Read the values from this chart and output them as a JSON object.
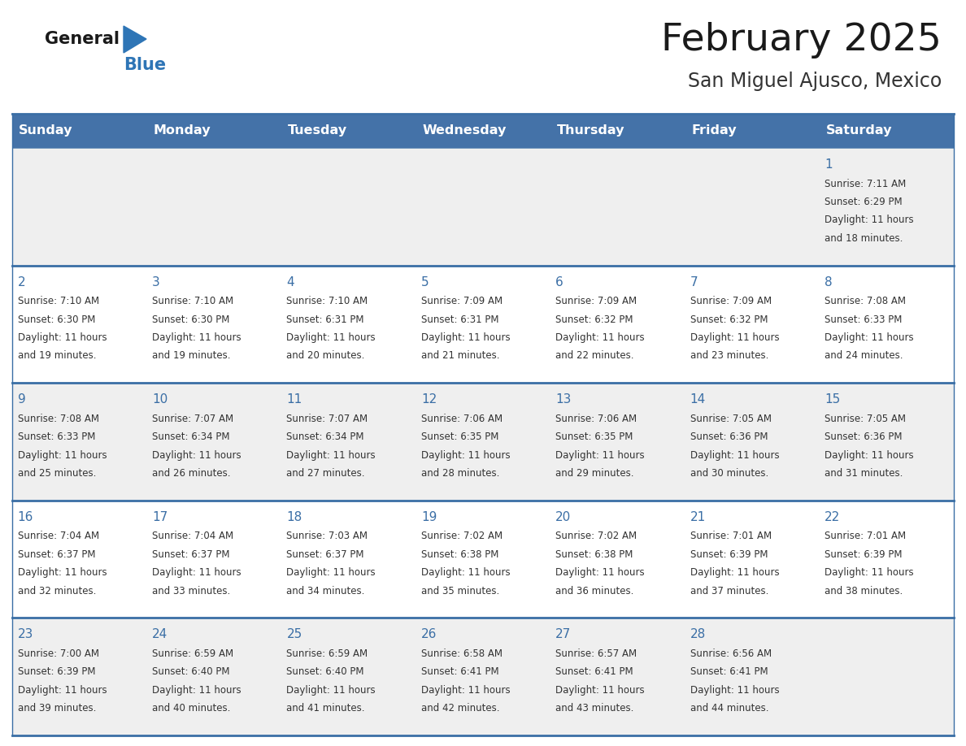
{
  "title": "February 2025",
  "subtitle": "San Miguel Ajusco, Mexico",
  "days_of_week": [
    "Sunday",
    "Monday",
    "Tuesday",
    "Wednesday",
    "Thursday",
    "Friday",
    "Saturday"
  ],
  "header_bg": "#4472a8",
  "header_text": "#ffffff",
  "row_bg_odd": "#efefef",
  "row_bg_even": "#ffffff",
  "day_number_color": "#3a6ea5",
  "info_text_color": "#333333",
  "border_color": "#3a6ea5",
  "bg_color": "#ffffff",
  "logo_triangle_color": "#2e75b6",
  "calendar_data": [
    [
      null,
      null,
      null,
      null,
      null,
      null,
      {
        "day": "1",
        "sunrise": "7:11 AM",
        "sunset": "6:29 PM",
        "daylight": "11 hours",
        "daylight2": "and 18 minutes."
      }
    ],
    [
      {
        "day": "2",
        "sunrise": "7:10 AM",
        "sunset": "6:30 PM",
        "daylight": "11 hours",
        "daylight2": "and 19 minutes."
      },
      {
        "day": "3",
        "sunrise": "7:10 AM",
        "sunset": "6:30 PM",
        "daylight": "11 hours",
        "daylight2": "and 19 minutes."
      },
      {
        "day": "4",
        "sunrise": "7:10 AM",
        "sunset": "6:31 PM",
        "daylight": "11 hours",
        "daylight2": "and 20 minutes."
      },
      {
        "day": "5",
        "sunrise": "7:09 AM",
        "sunset": "6:31 PM",
        "daylight": "11 hours",
        "daylight2": "and 21 minutes."
      },
      {
        "day": "6",
        "sunrise": "7:09 AM",
        "sunset": "6:32 PM",
        "daylight": "11 hours",
        "daylight2": "and 22 minutes."
      },
      {
        "day": "7",
        "sunrise": "7:09 AM",
        "sunset": "6:32 PM",
        "daylight": "11 hours",
        "daylight2": "and 23 minutes."
      },
      {
        "day": "8",
        "sunrise": "7:08 AM",
        "sunset": "6:33 PM",
        "daylight": "11 hours",
        "daylight2": "and 24 minutes."
      }
    ],
    [
      {
        "day": "9",
        "sunrise": "7:08 AM",
        "sunset": "6:33 PM",
        "daylight": "11 hours",
        "daylight2": "and 25 minutes."
      },
      {
        "day": "10",
        "sunrise": "7:07 AM",
        "sunset": "6:34 PM",
        "daylight": "11 hours",
        "daylight2": "and 26 minutes."
      },
      {
        "day": "11",
        "sunrise": "7:07 AM",
        "sunset": "6:34 PM",
        "daylight": "11 hours",
        "daylight2": "and 27 minutes."
      },
      {
        "day": "12",
        "sunrise": "7:06 AM",
        "sunset": "6:35 PM",
        "daylight": "11 hours",
        "daylight2": "and 28 minutes."
      },
      {
        "day": "13",
        "sunrise": "7:06 AM",
        "sunset": "6:35 PM",
        "daylight": "11 hours",
        "daylight2": "and 29 minutes."
      },
      {
        "day": "14",
        "sunrise": "7:05 AM",
        "sunset": "6:36 PM",
        "daylight": "11 hours",
        "daylight2": "and 30 minutes."
      },
      {
        "day": "15",
        "sunrise": "7:05 AM",
        "sunset": "6:36 PM",
        "daylight": "11 hours",
        "daylight2": "and 31 minutes."
      }
    ],
    [
      {
        "day": "16",
        "sunrise": "7:04 AM",
        "sunset": "6:37 PM",
        "daylight": "11 hours",
        "daylight2": "and 32 minutes."
      },
      {
        "day": "17",
        "sunrise": "7:04 AM",
        "sunset": "6:37 PM",
        "daylight": "11 hours",
        "daylight2": "and 33 minutes."
      },
      {
        "day": "18",
        "sunrise": "7:03 AM",
        "sunset": "6:37 PM",
        "daylight": "11 hours",
        "daylight2": "and 34 minutes."
      },
      {
        "day": "19",
        "sunrise": "7:02 AM",
        "sunset": "6:38 PM",
        "daylight": "11 hours",
        "daylight2": "and 35 minutes."
      },
      {
        "day": "20",
        "sunrise": "7:02 AM",
        "sunset": "6:38 PM",
        "daylight": "11 hours",
        "daylight2": "and 36 minutes."
      },
      {
        "day": "21",
        "sunrise": "7:01 AM",
        "sunset": "6:39 PM",
        "daylight": "11 hours",
        "daylight2": "and 37 minutes."
      },
      {
        "day": "22",
        "sunrise": "7:01 AM",
        "sunset": "6:39 PM",
        "daylight": "11 hours",
        "daylight2": "and 38 minutes."
      }
    ],
    [
      {
        "day": "23",
        "sunrise": "7:00 AM",
        "sunset": "6:39 PM",
        "daylight": "11 hours",
        "daylight2": "and 39 minutes."
      },
      {
        "day": "24",
        "sunrise": "6:59 AM",
        "sunset": "6:40 PM",
        "daylight": "11 hours",
        "daylight2": "and 40 minutes."
      },
      {
        "day": "25",
        "sunrise": "6:59 AM",
        "sunset": "6:40 PM",
        "daylight": "11 hours",
        "daylight2": "and 41 minutes."
      },
      {
        "day": "26",
        "sunrise": "6:58 AM",
        "sunset": "6:41 PM",
        "daylight": "11 hours",
        "daylight2": "and 42 minutes."
      },
      {
        "day": "27",
        "sunrise": "6:57 AM",
        "sunset": "6:41 PM",
        "daylight": "11 hours",
        "daylight2": "and 43 minutes."
      },
      {
        "day": "28",
        "sunrise": "6:56 AM",
        "sunset": "6:41 PM",
        "daylight": "11 hours",
        "daylight2": "and 44 minutes."
      },
      null
    ]
  ]
}
